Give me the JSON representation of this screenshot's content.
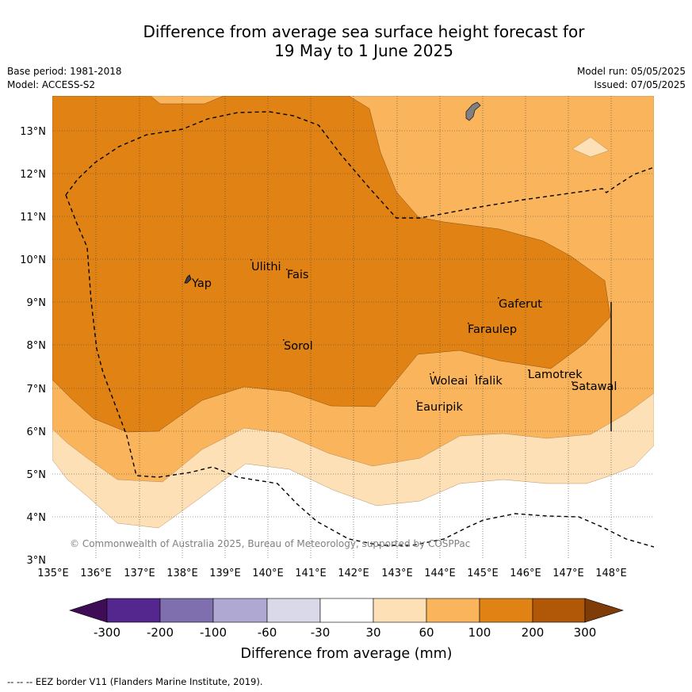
{
  "header": {
    "title_line1": "Difference from average sea surface height forecast for",
    "title_line2": "19 May to 1 June 2025",
    "base_period": "Base period: 1981-2018",
    "model": "Model: ACCESS-S2",
    "model_run": "Model run: 05/05/2025",
    "issued": "Issued: 07/05/2025"
  },
  "map": {
    "lon_ticks": [
      "135°E",
      "136°E",
      "137°E",
      "138°E",
      "139°E",
      "140°E",
      "141°E",
      "142°E",
      "143°E",
      "144°E",
      "145°E",
      "146°E",
      "147°E",
      "148°E"
    ],
    "lat_ticks": [
      "3°N",
      "4°N",
      "5°N",
      "6°N",
      "7°N",
      "8°N",
      "9°N",
      "10°N",
      "11°N",
      "12°N",
      "13°N"
    ],
    "places": [
      {
        "name": "Yap"
      },
      {
        "name": "Ulithi"
      },
      {
        "name": "Fais"
      },
      {
        "name": "Sorol"
      },
      {
        "name": "Gaferut"
      },
      {
        "name": "Faraulep"
      },
      {
        "name": "Woleai"
      },
      {
        "name": "Ifalik"
      },
      {
        "name": "Eauripik"
      },
      {
        "name": "Lamotrek"
      },
      {
        "name": "Satawal"
      }
    ],
    "copyright": "© Commonwealth of Australia 2025, Bureau of Meteorology, supported by COSPPac"
  },
  "colorbar": {
    "tick_labels": [
      "-300",
      "-200",
      "-100",
      "-60",
      "-30",
      "30",
      "60",
      "100",
      "200",
      "300"
    ],
    "colors": [
      "#3f0d55",
      "#54278f",
      "#7f6faf",
      "#aea8d2",
      "#d9d9ea",
      "#ffffff",
      "#fee0b6",
      "#f9b45c",
      "#e08214",
      "#b05808",
      "#7f3b08"
    ],
    "label": "Difference from average (mm)"
  },
  "footnote": "-- -- -- EEZ border V11 (Flanders Marine Institute, 2019)."
}
